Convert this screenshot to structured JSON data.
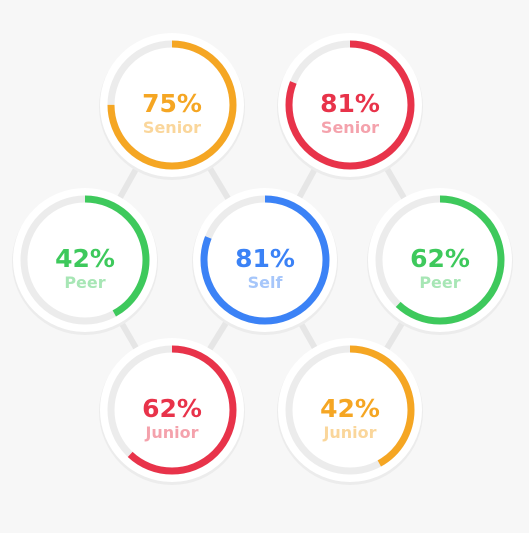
{
  "rings": [
    {
      "value": 75,
      "value_label": "75%",
      "label": "Senior",
      "color": "#f5a623"
    },
    {
      "value": 81,
      "value_label": "81%",
      "label": "Senior",
      "color": "#e8334a"
    },
    {
      "value": 42,
      "value_label": "42%",
      "label": "Peer",
      "color": "#3ec95c"
    },
    {
      "value": 81,
      "value_label": "81%",
      "label": "Self",
      "color": "#3b82f6"
    },
    {
      "value": 62,
      "value_label": "62%",
      "label": "Peer",
      "color": "#3ec95c"
    },
    {
      "value": 62,
      "value_label": "62%",
      "label": "Junior",
      "color": "#e8334a"
    },
    {
      "value": 42,
      "value_label": "42%",
      "label": "Junior",
      "color": "#f5a623"
    }
  ]
}
